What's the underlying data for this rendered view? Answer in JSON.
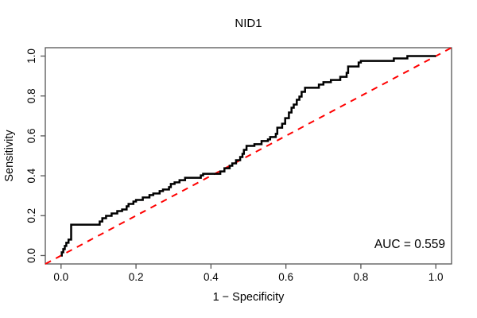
{
  "title": "NID1",
  "chart_data": {
    "type": "line",
    "title": "NID1",
    "xlabel": "1 − Specificity",
    "ylabel": "Sensitivity",
    "xlim": [
      -0.042,
      1.042
    ],
    "ylim": [
      -0.042,
      1.042
    ],
    "x_ticks": [
      0.0,
      0.2,
      0.4,
      0.6,
      0.8,
      1.0
    ],
    "y_ticks": [
      0.0,
      0.2,
      0.4,
      0.6,
      0.8,
      1.0
    ],
    "x_tick_labels": [
      "0.0",
      "0.2",
      "0.4",
      "0.6",
      "0.8",
      "1.0"
    ],
    "y_tick_labels": [
      "0.0",
      "0.2",
      "0.4",
      "0.6",
      "0.8",
      "1.0"
    ],
    "grid": false,
    "legend": "none",
    "annotation": {
      "text": "AUC = 0.559",
      "anchor": "bottom-right"
    },
    "auc_value": 0.559,
    "box_color": "#555555",
    "series": [
      {
        "name": "roc-curve",
        "color": "#000000",
        "width": 2.5,
        "dash": null,
        "points": [
          [
            0.0,
            0.0
          ],
          [
            0.002,
            0.0
          ],
          [
            0.002,
            0.016
          ],
          [
            0.006,
            0.016
          ],
          [
            0.006,
            0.032
          ],
          [
            0.01,
            0.032
          ],
          [
            0.01,
            0.048
          ],
          [
            0.014,
            0.048
          ],
          [
            0.014,
            0.064
          ],
          [
            0.02,
            0.064
          ],
          [
            0.02,
            0.08
          ],
          [
            0.027,
            0.08
          ],
          [
            0.027,
            0.155
          ],
          [
            0.103,
            0.155
          ],
          [
            0.103,
            0.171
          ],
          [
            0.11,
            0.171
          ],
          [
            0.11,
            0.187
          ],
          [
            0.12,
            0.187
          ],
          [
            0.12,
            0.199
          ],
          [
            0.135,
            0.199
          ],
          [
            0.135,
            0.211
          ],
          [
            0.15,
            0.211
          ],
          [
            0.15,
            0.223
          ],
          [
            0.163,
            0.223
          ],
          [
            0.163,
            0.231
          ],
          [
            0.175,
            0.231
          ],
          [
            0.175,
            0.247
          ],
          [
            0.18,
            0.247
          ],
          [
            0.18,
            0.259
          ],
          [
            0.193,
            0.259
          ],
          [
            0.193,
            0.271
          ],
          [
            0.2,
            0.271
          ],
          [
            0.2,
            0.279
          ],
          [
            0.218,
            0.279
          ],
          [
            0.218,
            0.291
          ],
          [
            0.236,
            0.291
          ],
          [
            0.236,
            0.303
          ],
          [
            0.246,
            0.303
          ],
          [
            0.246,
            0.311
          ],
          [
            0.263,
            0.311
          ],
          [
            0.263,
            0.323
          ],
          [
            0.272,
            0.323
          ],
          [
            0.272,
            0.331
          ],
          [
            0.288,
            0.331
          ],
          [
            0.288,
            0.343
          ],
          [
            0.293,
            0.343
          ],
          [
            0.293,
            0.359
          ],
          [
            0.303,
            0.359
          ],
          [
            0.303,
            0.367
          ],
          [
            0.316,
            0.367
          ],
          [
            0.316,
            0.378
          ],
          [
            0.331,
            0.378
          ],
          [
            0.331,
            0.39
          ],
          [
            0.373,
            0.39
          ],
          [
            0.373,
            0.402
          ],
          [
            0.379,
            0.402
          ],
          [
            0.379,
            0.41
          ],
          [
            0.425,
            0.41
          ],
          [
            0.425,
            0.422
          ],
          [
            0.436,
            0.422
          ],
          [
            0.436,
            0.438
          ],
          [
            0.45,
            0.438
          ],
          [
            0.45,
            0.45
          ],
          [
            0.457,
            0.45
          ],
          [
            0.457,
            0.462
          ],
          [
            0.467,
            0.462
          ],
          [
            0.467,
            0.478
          ],
          [
            0.478,
            0.478
          ],
          [
            0.478,
            0.494
          ],
          [
            0.484,
            0.494
          ],
          [
            0.484,
            0.51
          ],
          [
            0.488,
            0.51
          ],
          [
            0.488,
            0.53
          ],
          [
            0.495,
            0.53
          ],
          [
            0.495,
            0.55
          ],
          [
            0.516,
            0.55
          ],
          [
            0.516,
            0.558
          ],
          [
            0.535,
            0.558
          ],
          [
            0.535,
            0.574
          ],
          [
            0.552,
            0.574
          ],
          [
            0.552,
            0.582
          ],
          [
            0.558,
            0.582
          ],
          [
            0.558,
            0.594
          ],
          [
            0.573,
            0.594
          ],
          [
            0.573,
            0.61
          ],
          [
            0.577,
            0.61
          ],
          [
            0.577,
            0.641
          ],
          [
            0.59,
            0.641
          ],
          [
            0.59,
            0.661
          ],
          [
            0.598,
            0.661
          ],
          [
            0.598,
            0.689
          ],
          [
            0.608,
            0.689
          ],
          [
            0.608,
            0.717
          ],
          [
            0.615,
            0.717
          ],
          [
            0.615,
            0.741
          ],
          [
            0.621,
            0.741
          ],
          [
            0.621,
            0.757
          ],
          [
            0.629,
            0.757
          ],
          [
            0.629,
            0.781
          ],
          [
            0.636,
            0.781
          ],
          [
            0.636,
            0.797
          ],
          [
            0.642,
            0.797
          ],
          [
            0.642,
            0.821
          ],
          [
            0.651,
            0.821
          ],
          [
            0.651,
            0.841
          ],
          [
            0.688,
            0.841
          ],
          [
            0.688,
            0.857
          ],
          [
            0.7,
            0.857
          ],
          [
            0.7,
            0.869
          ],
          [
            0.72,
            0.869
          ],
          [
            0.72,
            0.88
          ],
          [
            0.745,
            0.88
          ],
          [
            0.745,
            0.896
          ],
          [
            0.762,
            0.896
          ],
          [
            0.762,
            0.916
          ],
          [
            0.766,
            0.916
          ],
          [
            0.766,
            0.948
          ],
          [
            0.794,
            0.948
          ],
          [
            0.794,
            0.968
          ],
          [
            0.8,
            0.968
          ],
          [
            0.8,
            0.976
          ],
          [
            0.888,
            0.976
          ],
          [
            0.888,
            0.988
          ],
          [
            0.924,
            0.988
          ],
          [
            0.924,
            1.0
          ],
          [
            1.0,
            1.0
          ]
        ]
      },
      {
        "name": "chance-diagonal",
        "color": "#ff0000",
        "width": 2,
        "dash": [
          8,
          7
        ],
        "points": [
          [
            -0.042,
            -0.042
          ],
          [
            1.042,
            1.042
          ]
        ]
      }
    ]
  }
}
